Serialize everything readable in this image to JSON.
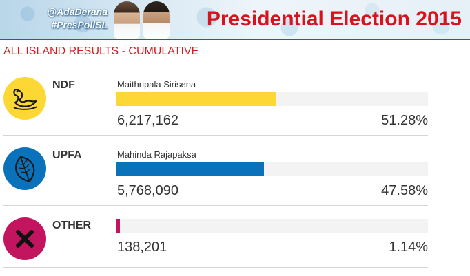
{
  "banner": {
    "tag_channel": "@AdaDerana",
    "tag_hashtag": "#PresPollSL",
    "title": "Presidential Election 2015",
    "title_color": "#d8131c"
  },
  "section_title": "ALL ISLAND RESULTS - CUMULATIVE",
  "results": [
    {
      "party": "NDF",
      "candidate": "Maithripala Sirisena",
      "votes": "6,217,162",
      "percent": "51.28%",
      "share": 0.5128,
      "color": "#fdd835",
      "emblem_icon": "swan-icon"
    },
    {
      "party": "UPFA",
      "candidate": "Mahinda Rajapaksa",
      "votes": "5,768,090",
      "percent": "47.58%",
      "share": 0.4758,
      "color": "#0a72ba",
      "emblem_icon": "betel-leaf-icon"
    },
    {
      "party": "OTHER",
      "candidate": "",
      "votes": "138,201",
      "percent": "1.14%",
      "share": 0.0114,
      "color": "#c3155f",
      "emblem_icon": "cross-icon"
    }
  ]
}
